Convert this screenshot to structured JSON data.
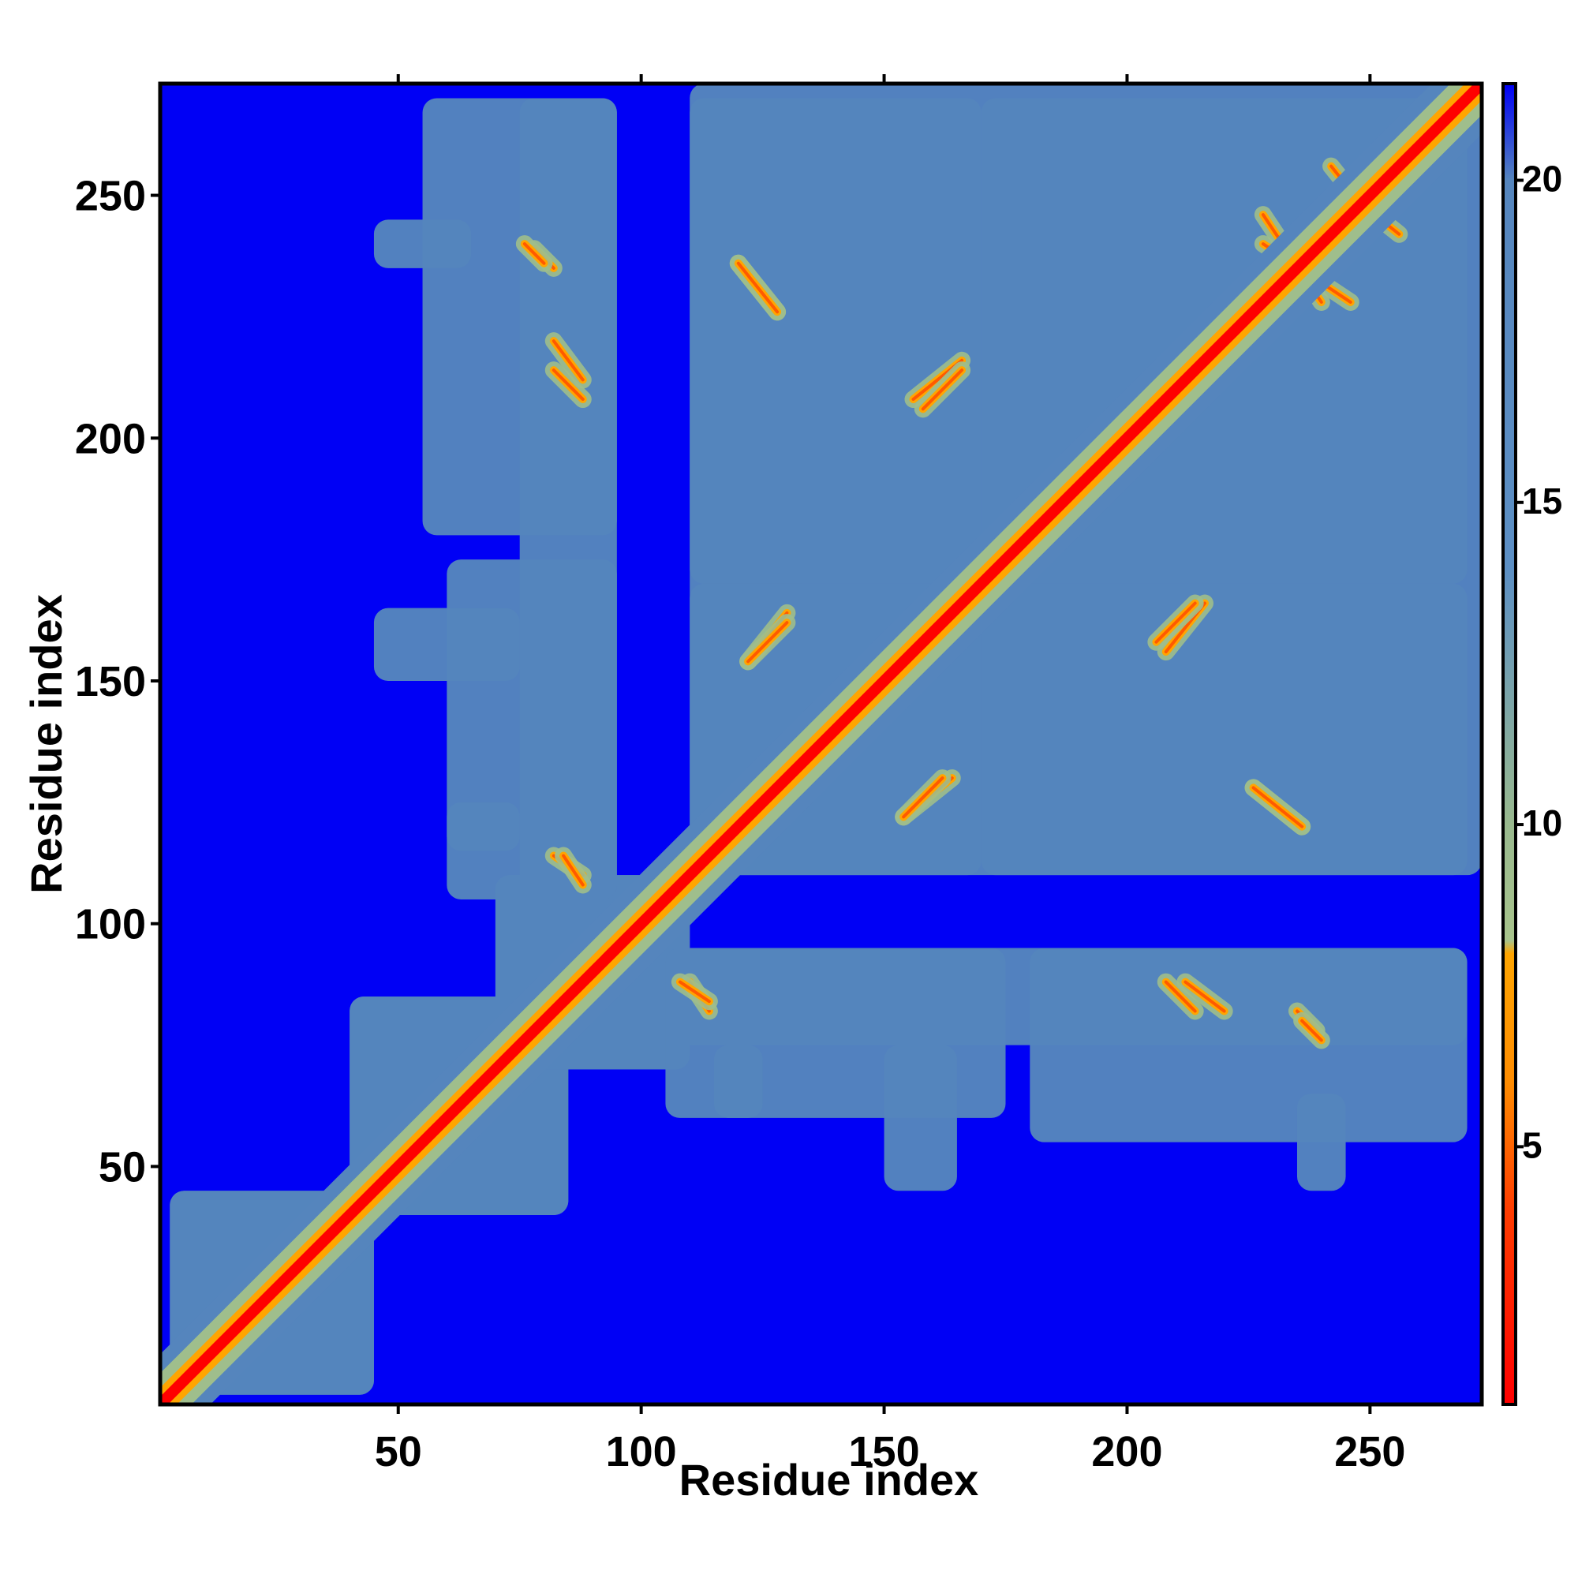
{
  "chart_data": {
    "type": "heatmap",
    "title": "",
    "xlabel": "Residue index",
    "ylabel": "Residue index",
    "xlim": [
      1,
      273
    ],
    "ylim": [
      1,
      273
    ],
    "x_ticks": [
      50,
      100,
      150,
      200,
      250
    ],
    "y_ticks": [
      50,
      100,
      150,
      200,
      250
    ],
    "colorbar": {
      "range": [
        1,
        21.5
      ],
      "ticks": [
        5,
        10,
        15,
        20
      ],
      "stops": [
        {
          "value": 1,
          "color": "#ff0000"
        },
        {
          "value": 4,
          "color": "#ff3c00"
        },
        {
          "value": 6,
          "color": "#ff8c00"
        },
        {
          "value": 8,
          "color": "#ffa500"
        },
        {
          "value": 8.2,
          "color": "#a8c48c"
        },
        {
          "value": 10,
          "color": "#99b98e"
        },
        {
          "value": 14,
          "color": "#5c8fc4"
        },
        {
          "value": 20,
          "color": "#5585bd"
        },
        {
          "value": 21.5,
          "color": "#0000f5"
        }
      ]
    },
    "colors": {
      "background": "#0000f5",
      "contact_region": "#5585bd",
      "halo": "#9fbe8c",
      "medium": "#ffa500",
      "close": "#ff0000"
    },
    "regions": [
      {
        "x": [
          3,
          45
        ],
        "y": [
          3,
          45
        ]
      },
      {
        "x": [
          40,
          85
        ],
        "y": [
          40,
          85
        ]
      },
      {
        "x": [
          70,
          110
        ],
        "y": [
          70,
          110
        ]
      },
      {
        "x": [
          75,
          95
        ],
        "y": [
          105,
          270
        ]
      },
      {
        "x": [
          110,
          170
        ],
        "y": [
          110,
          270
        ]
      },
      {
        "x": [
          170,
          273
        ],
        "y": [
          110,
          270
        ]
      },
      {
        "x": [
          105,
          175
        ],
        "y": [
          60,
          95
        ]
      },
      {
        "x": [
          180,
          270
        ],
        "y": [
          55,
          95
        ]
      },
      {
        "x": [
          60,
          75
        ],
        "y": [
          115,
          125
        ]
      },
      {
        "x": [
          45,
          65
        ],
        "y": [
          235,
          245
        ]
      },
      {
        "x": [
          45,
          75
        ],
        "y": [
          150,
          165
        ]
      }
    ],
    "contact_lines": [
      {
        "from": [
          110,
          88
        ],
        "to": [
          114,
          82
        ]
      },
      {
        "from": [
          78,
          239
        ],
        "to": [
          82,
          235
        ]
      },
      {
        "from": [
          82,
          214
        ],
        "to": [
          88,
          208
        ]
      },
      {
        "from": [
          84,
          114
        ],
        "to": [
          88,
          108
        ]
      },
      {
        "from": [
          120,
          236
        ],
        "to": [
          128,
          226
        ]
      },
      {
        "from": [
          156,
          208
        ],
        "to": [
          166,
          216
        ]
      },
      {
        "from": [
          122,
          154
        ],
        "to": [
          130,
          164
        ]
      },
      {
        "from": [
          154,
          122
        ],
        "to": [
          162,
          130
        ]
      },
      {
        "from": [
          228,
          246
        ],
        "to": [
          240,
          228
        ]
      },
      {
        "from": [
          226,
          128
        ],
        "to": [
          236,
          120
        ]
      },
      {
        "from": [
          206,
          158
        ],
        "to": [
          214,
          166
        ]
      },
      {
        "from": [
          212,
          88
        ],
        "to": [
          220,
          82
        ]
      },
      {
        "from": [
          236,
          80
        ],
        "to": [
          240,
          76
        ]
      },
      {
        "from": [
          242,
          256
        ],
        "to": [
          250,
          246
        ]
      }
    ]
  }
}
